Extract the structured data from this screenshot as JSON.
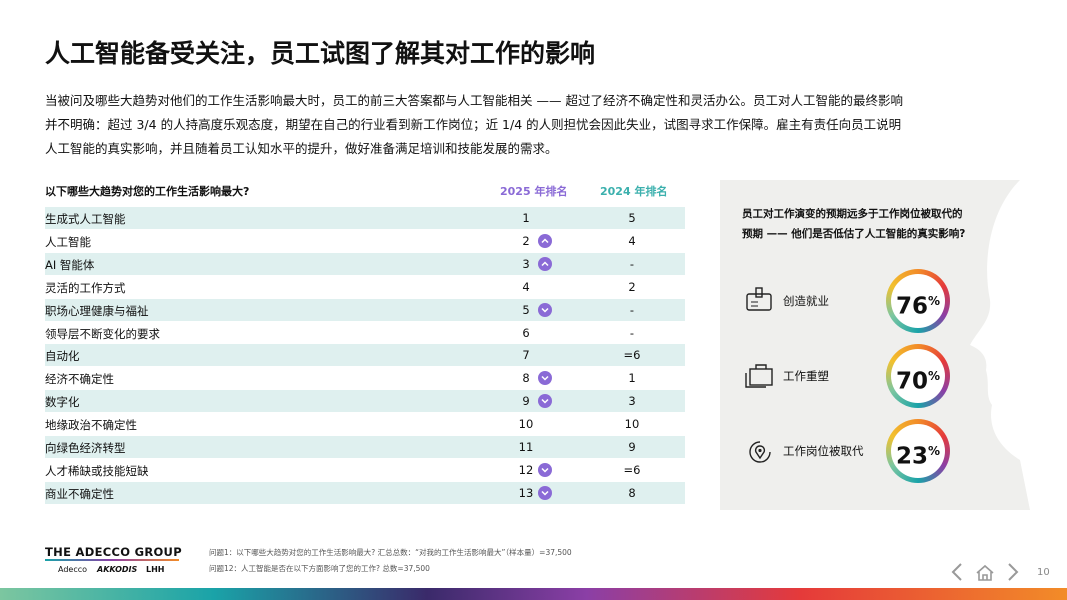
{
  "title": "人工智能备受关注，员工试图了解其对工作的影响",
  "intro": [
    "当被问及哪些大趋势对他们的工作生活影响最大时，员工的前三大答案都与人工智能相关 —— 超过了经济不确定性和灵活办公。员工对人工智能的最终影响",
    "并不明确：超过 3/4 的人持高度乐观态度，期望在自己的行业看到新工作岗位；近 1/4 的人则担忧会因此失业，试图寻求工作保障。雇主有责任向员工说明",
    "人工智能的真实影响，并且随着员工认知水平的提升，做好准备满足培训和技能发展的需求。"
  ],
  "table": {
    "header": [
      "以下哪些大趋势对您的工作生活影响最大?",
      "2025 年排名",
      "2024 年排名"
    ],
    "rows": [
      {
        "label": "生成式人工智能",
        "rank_2025": "1",
        "rank_2024": "5"
      },
      {
        "label": "人工智能",
        "rank_2025": "2",
        "rank_2024": "4",
        "trend": "up"
      },
      {
        "label": "AI 智能体",
        "rank_2025": "3",
        "rank_2024": "-",
        "trend": "up"
      },
      {
        "label": "灵活的工作方式",
        "rank_2025": "4",
        "rank_2024": "2"
      },
      {
        "label": "职场心理健康与福祉",
        "rank_2025": "5",
        "rank_2024": "-",
        "trend": "down"
      },
      {
        "label": "领导层不断变化的要求",
        "rank_2025": "6",
        "rank_2024": "-"
      },
      {
        "label": "自动化",
        "rank_2025": "7",
        "rank_2024": "=6"
      },
      {
        "label": "经济不确定性",
        "rank_2025": "8",
        "rank_2024": "1",
        "trend": "down"
      },
      {
        "label": "数字化",
        "rank_2025": "9",
        "rank_2024": "3",
        "trend": "down"
      },
      {
        "label": "地缘政治不确定性",
        "rank_2025": "10",
        "rank_2024": "10"
      },
      {
        "label": "向绿色经济转型",
        "rank_2025": "11",
        "rank_2024": "9"
      },
      {
        "label": "人才稀缺或技能短缺",
        "rank_2025": "12",
        "rank_2024": "=6",
        "trend": "down"
      },
      {
        "label": "商业不确定性",
        "rank_2025": "13",
        "rank_2024": "8",
        "trend": "down"
      }
    ]
  },
  "panel": {
    "question": [
      "员工对工作演变的预期远多于工作岗位被取代的",
      "预期 —— 他们是否低估了人工智能的真实影响?"
    ],
    "items": [
      {
        "label": "创造就业",
        "value": "76",
        "unit": "%"
      },
      {
        "label": "工作重塑",
        "value": "70",
        "unit": "%"
      },
      {
        "label": "工作岗位被取代",
        "value": "23",
        "unit": "%"
      }
    ]
  },
  "footer": {
    "logo": "THE ADECCO GROUP",
    "brands": [
      "Adecco",
      "AKKODIS",
      "LHH"
    ],
    "notes": [
      "问题1：以下哪些大趋势对您的工作生活影响最大? 汇总总数：“对我的工作生活影响最大”（样本量）=37,500",
      "问题12：人工智能是否在以下方面影响了您的工作? 总数=37,500"
    ],
    "page": "10"
  }
}
